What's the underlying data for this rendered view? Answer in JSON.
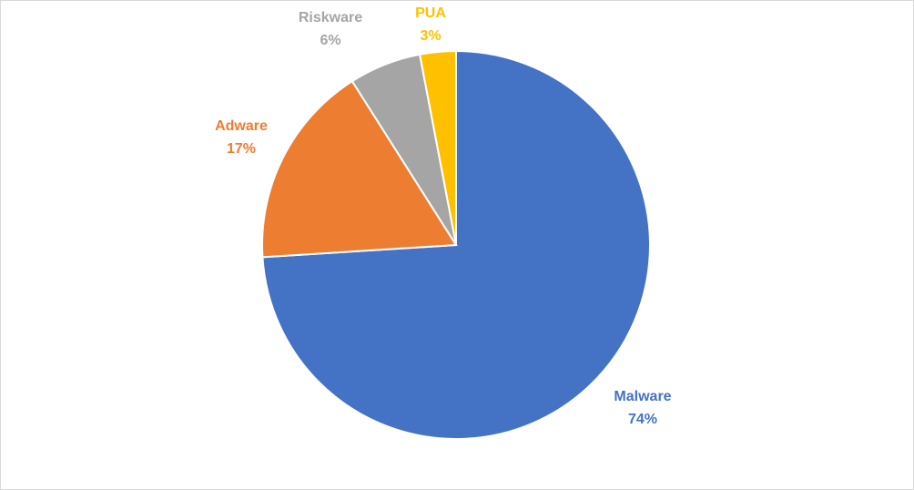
{
  "chart_data": {
    "type": "pie",
    "categories": [
      "Malware",
      "Adware",
      "Riskware",
      "PUA"
    ],
    "values": [
      74,
      17,
      6,
      3
    ],
    "value_labels": [
      "74%",
      "17%",
      "6%",
      "3%"
    ],
    "colors": [
      "#4472c4",
      "#ed7d31",
      "#a5a5a5",
      "#ffc000"
    ]
  }
}
